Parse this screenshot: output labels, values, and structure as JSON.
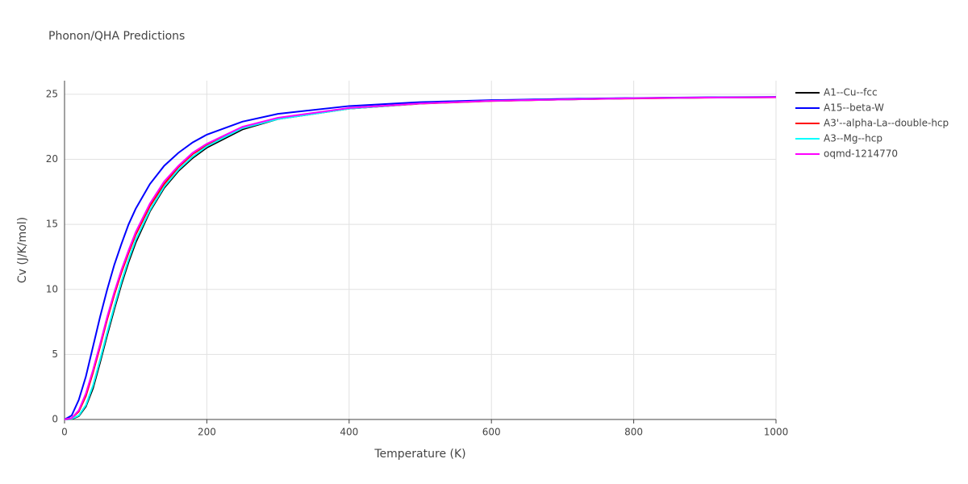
{
  "chart_data": {
    "type": "line",
    "title": "Phonon/QHA Predictions",
    "x_label": "Temperature (K)",
    "y_label": "Cv (J/K/mol)",
    "x": [
      0,
      10,
      20,
      30,
      40,
      50,
      60,
      70,
      80,
      90,
      100,
      120,
      140,
      160,
      180,
      200,
      250,
      300,
      400,
      500,
      600,
      700,
      800,
      900,
      1000
    ],
    "series": [
      {
        "name": "A1--Cu--fcc",
        "color": "#000000",
        "values": [
          0,
          0.03,
          0.25,
          1.0,
          2.4,
          4.4,
          6.5,
          8.5,
          10.4,
          12.1,
          13.6,
          16.0,
          17.8,
          19.1,
          20.1,
          20.9,
          22.3,
          23.1,
          23.9,
          24.3,
          24.5,
          24.6,
          24.7,
          24.75,
          24.78
        ]
      },
      {
        "name": "A15--beta-W",
        "color": "#0000ff",
        "values": [
          0,
          0.3,
          1.5,
          3.3,
          5.6,
          7.9,
          10.0,
          11.9,
          13.5,
          15.0,
          16.2,
          18.1,
          19.5,
          20.5,
          21.3,
          21.9,
          22.9,
          23.5,
          24.1,
          24.4,
          24.55,
          24.65,
          24.72,
          24.77,
          24.8
        ]
      },
      {
        "name": "A3'--alpha-La--double-hcp",
        "color": "#ff0000",
        "values": [
          0,
          0.1,
          0.6,
          1.8,
          3.6,
          5.6,
          7.7,
          9.6,
          11.3,
          12.8,
          14.2,
          16.4,
          18.1,
          19.4,
          20.4,
          21.1,
          22.4,
          23.15,
          23.9,
          24.28,
          24.48,
          24.6,
          24.68,
          24.74,
          24.77
        ]
      },
      {
        "name": "A3--Mg--hcp",
        "color": "#00ffff",
        "values": [
          0,
          0.05,
          0.3,
          1.1,
          2.6,
          4.6,
          6.7,
          8.7,
          10.6,
          12.3,
          13.8,
          16.1,
          17.9,
          19.2,
          20.2,
          21.0,
          22.4,
          23.1,
          23.9,
          24.3,
          24.5,
          24.6,
          24.7,
          24.75,
          24.78
        ]
      },
      {
        "name": "oqmd-1214770",
        "color": "#ff00ff",
        "values": [
          0,
          0.1,
          0.7,
          2.0,
          3.8,
          5.8,
          7.9,
          9.8,
          11.5,
          13.0,
          14.4,
          16.6,
          18.3,
          19.5,
          20.5,
          21.2,
          22.5,
          23.2,
          23.95,
          24.3,
          24.5,
          24.6,
          24.7,
          24.75,
          24.78
        ]
      }
    ],
    "xlim": [
      0,
      1000
    ],
    "xticks": [
      0,
      200,
      400,
      600,
      800,
      1000
    ],
    "ylim": [
      0,
      26.05
    ],
    "yticks": [
      0,
      5,
      10,
      15,
      20,
      25
    ],
    "grid": true
  }
}
